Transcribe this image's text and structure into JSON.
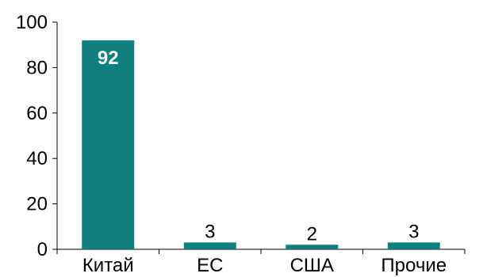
{
  "chart_data": {
    "type": "bar",
    "categories": [
      "Китай",
      "ЕС",
      "США",
      "Прочие"
    ],
    "values": [
      92,
      3,
      2,
      3
    ],
    "data_labels": [
      "92",
      "3",
      "2",
      "3"
    ],
    "ylim": [
      0,
      100
    ],
    "yticks": [
      0,
      20,
      40,
      60,
      80,
      100
    ],
    "ytick_labels": [
      "0",
      "20",
      "40",
      "60",
      "80",
      "100"
    ],
    "bar_color": "#0e7f7c",
    "grid": false,
    "legend": false
  }
}
